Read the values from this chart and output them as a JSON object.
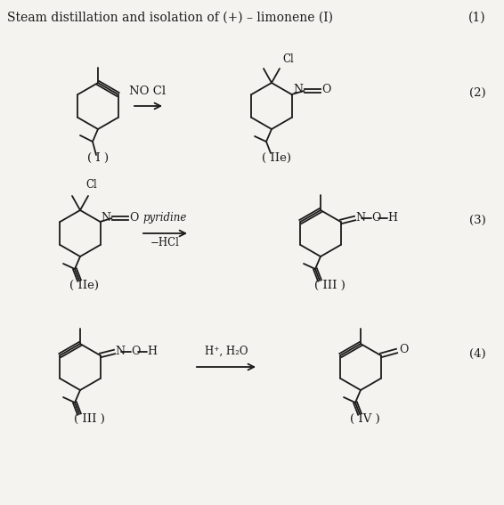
{
  "title": "Steam distillation and isolation of (+) – limonene (I)",
  "label1": "(1)",
  "label2": "(2)",
  "label3": "(3)",
  "label4": "(4)",
  "reagent1": "NO Cl",
  "reagent2_top": "pyridine",
  "reagent2_bot": "−HCl",
  "reagent3": "H⁺, H₂O",
  "comp1": "( I )",
  "comp2": "( IIе)",
  "comp2b": "( IIе)",
  "comp3": "( III )",
  "comp3b": "( III )",
  "comp4": "( IV )",
  "bg_color": "#f5f3ef",
  "line_color": "#1a1a1a",
  "text_color": "#1a1a1a",
  "lw": 1.3
}
